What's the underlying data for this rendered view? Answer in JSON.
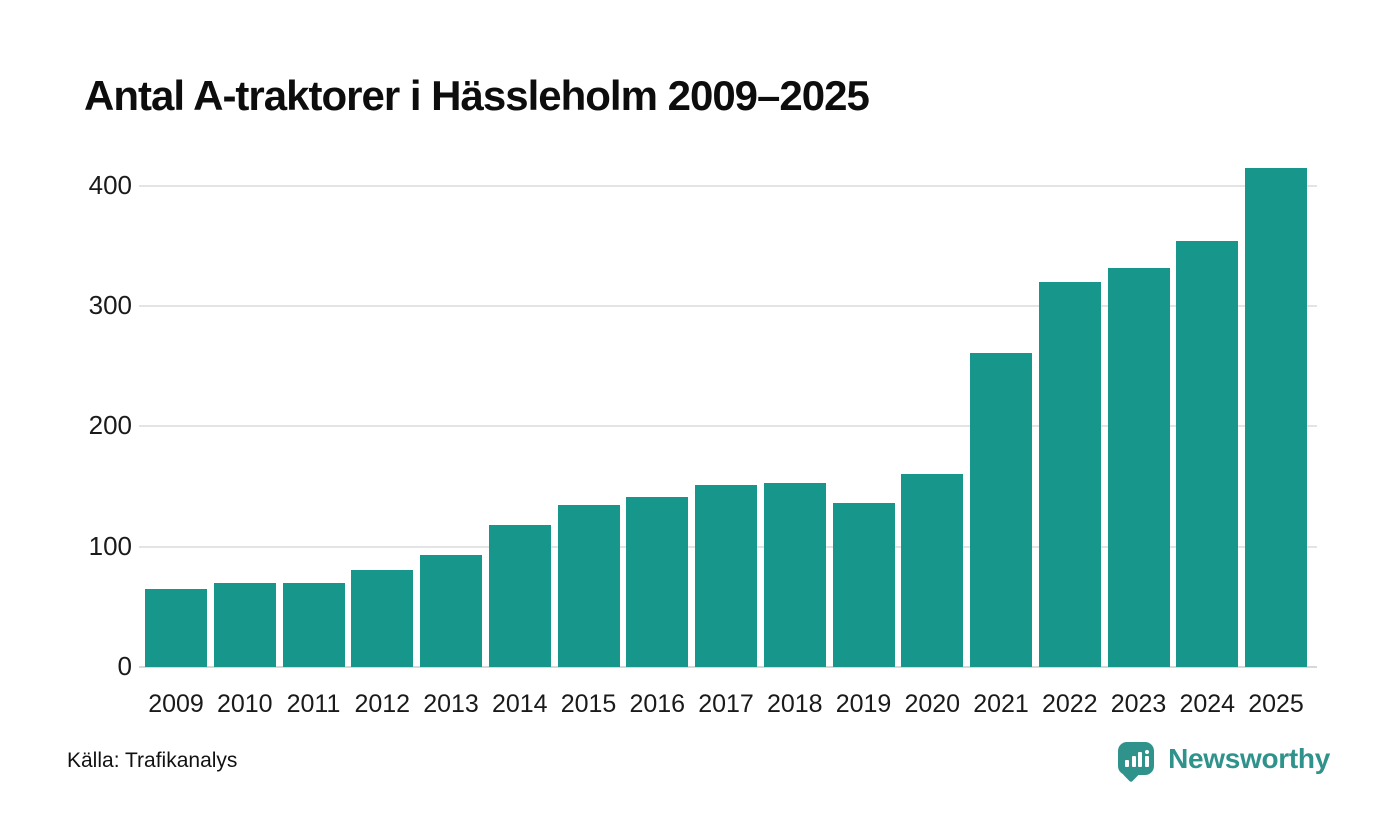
{
  "page": {
    "title": "Antal A-traktorer i Hässleholm 2009–2025",
    "source": "Källa: Trafikanalys",
    "brand_name": "Newsworthy"
  },
  "colors": {
    "bar": "#17968b",
    "brand_teal": "#2f938b",
    "grid": "#e4e4e4",
    "axis_line": "#d8d8d8",
    "text": "#111111"
  },
  "chart_data": {
    "type": "bar",
    "title": "Antal A-traktorer i Hässleholm 2009–2025",
    "categories": [
      "2009",
      "2010",
      "2011",
      "2012",
      "2013",
      "2014",
      "2015",
      "2016",
      "2017",
      "2018",
      "2019",
      "2020",
      "2021",
      "2022",
      "2023",
      "2024",
      "2025"
    ],
    "values": [
      65,
      70,
      70,
      81,
      93,
      118,
      135,
      141,
      151,
      153,
      136,
      160,
      261,
      320,
      332,
      354,
      415
    ],
    "series_name": "Antal A-traktorer",
    "xlabel": "",
    "ylabel": "",
    "ylim": [
      0,
      430
    ],
    "yticks": [
      0,
      100,
      200,
      300,
      400
    ],
    "grid": "horizontal",
    "legend": "none",
    "source": "Källa: Trafikanalys"
  }
}
